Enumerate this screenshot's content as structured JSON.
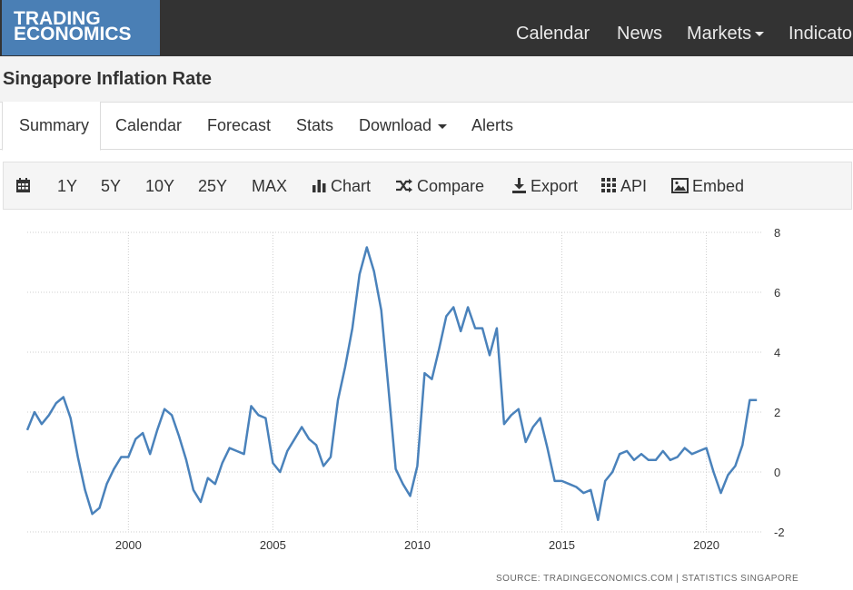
{
  "logo": {
    "line1": "TRADING",
    "line2": "ECONOMICS"
  },
  "nav": {
    "calendar": "Calendar",
    "news": "News",
    "markets": "Markets",
    "indicators": "Indicato"
  },
  "page_title": "Singapore Inflation Rate",
  "tabs": {
    "summary": "Summary",
    "calendar": "Calendar",
    "forecast": "Forecast",
    "stats": "Stats",
    "download": "Download",
    "alerts": "Alerts"
  },
  "toolbar": {
    "r1y": "1Y",
    "r5y": "5Y",
    "r10y": "10Y",
    "r25y": "25Y",
    "max": "MAX",
    "chart": "Chart",
    "compare": "Compare",
    "export": "Export",
    "api": "API",
    "embed": "Embed"
  },
  "source": "SOURCE:  TRADINGECONOMICS.COM  |  STATISTICS SINGAPORE",
  "colors": {
    "line": "#4a82bb",
    "logo_bg": "#4a7fb5",
    "topbar_bg": "#333333"
  },
  "chart_data": {
    "type": "line",
    "title": "",
    "xlabel": "",
    "ylabel": "",
    "xlim": [
      1996.5,
      2021.9
    ],
    "ylim": [
      -2,
      8
    ],
    "y_ticks": [
      -2,
      0,
      2,
      4,
      6,
      8
    ],
    "x_ticks": [
      2000,
      2005,
      2010,
      2015,
      2020
    ],
    "grid": true,
    "y_axis_side": "right",
    "series": [
      {
        "name": "",
        "x": [
          1996.5,
          1996.75,
          1997.0,
          1997.25,
          1997.5,
          1997.75,
          1998.0,
          1998.25,
          1998.5,
          1998.75,
          1999.0,
          1999.25,
          1999.5,
          1999.75,
          2000.0,
          2000.25,
          2000.5,
          2000.75,
          2001.0,
          2001.25,
          2001.5,
          2001.75,
          2002.0,
          2002.25,
          2002.5,
          2002.75,
          2003.0,
          2003.25,
          2003.5,
          2003.75,
          2004.0,
          2004.25,
          2004.5,
          2004.75,
          2005.0,
          2005.25,
          2005.5,
          2005.75,
          2006.0,
          2006.25,
          2006.5,
          2006.75,
          2007.0,
          2007.25,
          2007.5,
          2007.75,
          2008.0,
          2008.25,
          2008.5,
          2008.75,
          2009.0,
          2009.25,
          2009.5,
          2009.75,
          2010.0,
          2010.25,
          2010.5,
          2010.75,
          2011.0,
          2011.25,
          2011.5,
          2011.75,
          2012.0,
          2012.25,
          2012.5,
          2012.75,
          2013.0,
          2013.25,
          2013.5,
          2013.75,
          2014.0,
          2014.25,
          2014.5,
          2014.75,
          2015.0,
          2015.25,
          2015.5,
          2015.75,
          2016.0,
          2016.25,
          2016.5,
          2016.75,
          2017.0,
          2017.25,
          2017.5,
          2017.75,
          2018.0,
          2018.25,
          2018.5,
          2018.75,
          2019.0,
          2019.25,
          2019.5,
          2019.75,
          2020.0,
          2020.25,
          2020.5,
          2020.75,
          2021.0,
          2021.25,
          2021.5,
          2021.75
        ],
        "values": [
          1.4,
          2.0,
          1.6,
          1.9,
          2.3,
          2.5,
          1.8,
          0.5,
          -0.6,
          -1.4,
          -1.2,
          -0.4,
          0.1,
          0.5,
          0.5,
          1.1,
          1.3,
          0.6,
          1.4,
          2.1,
          1.9,
          1.2,
          0.4,
          -0.6,
          -1.0,
          -0.2,
          -0.4,
          0.3,
          0.8,
          0.7,
          0.6,
          2.2,
          1.9,
          1.8,
          0.3,
          0.0,
          0.7,
          1.1,
          1.5,
          1.1,
          0.9,
          0.2,
          0.5,
          2.4,
          3.5,
          4.8,
          6.6,
          7.5,
          6.7,
          5.4,
          2.8,
          0.1,
          -0.4,
          -0.8,
          0.2,
          3.3,
          3.1,
          4.1,
          5.2,
          5.5,
          4.7,
          5.5,
          4.8,
          4.8,
          3.9,
          4.8,
          1.6,
          1.9,
          2.1,
          1.0,
          1.5,
          1.8,
          0.8,
          -0.3,
          -0.3,
          -0.4,
          -0.5,
          -0.7,
          -0.6,
          -1.6,
          -0.3,
          0.0,
          0.6,
          0.7,
          0.4,
          0.6,
          0.4,
          0.4,
          0.7,
          0.4,
          0.5,
          0.8,
          0.6,
          0.7,
          0.8,
          0.0,
          -0.7,
          -0.1,
          0.2,
          0.9,
          2.4,
          2.4
        ]
      }
    ]
  }
}
